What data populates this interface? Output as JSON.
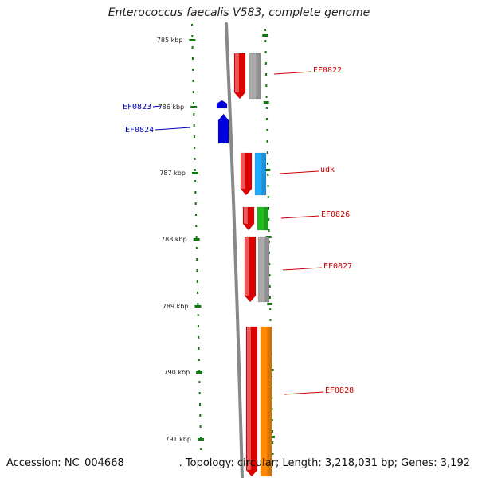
{
  "title": "Enterococcus faecalis V583, complete genome",
  "footer": {
    "accession": "Accession: NC_004668",
    "info": ". Topology: circular; Length: 3,218,031 bp; Genes: 3,192"
  },
  "colors": {
    "backbone": "#888888",
    "ticks": "#117711",
    "label_right": "#cc0000",
    "label_left": "#0000bb"
  },
  "scale": {
    "unit": "kbp",
    "ticks": [
      {
        "label": "785 kbp"
      },
      {
        "label": "786 kbp"
      },
      {
        "label": "787 kbp"
      },
      {
        "label": "788 kbp"
      },
      {
        "label": "789 kbp"
      },
      {
        "label": "790 kbp"
      },
      {
        "label": "791 kbp"
      }
    ]
  },
  "genes": [
    {
      "name": "EF0822",
      "strand": "right",
      "label_color": "#cc0000",
      "col1": "#dd0000",
      "col2": "#aaaaaa"
    },
    {
      "name": "EF0823",
      "strand": "left",
      "label_color": "#0000bb",
      "col1": "#0000dd"
    },
    {
      "name": "EF0824",
      "strand": "left",
      "label_color": "#0000bb",
      "col1": "#0000dd"
    },
    {
      "name": "udk",
      "strand": "right",
      "label_color": "#cc0000",
      "col1": "#dd0000",
      "col2": "#22aaff"
    },
    {
      "name": "EF0826",
      "strand": "right",
      "label_color": "#cc0000",
      "col1": "#dd0000",
      "col2": "#22bb22"
    },
    {
      "name": "EF0827",
      "strand": "right",
      "label_color": "#cc0000",
      "col1": "#dd0000",
      "col2": "#aaaaaa"
    },
    {
      "name": "EF0828",
      "strand": "right",
      "label_color": "#cc0000",
      "col1": "#dd0000",
      "col2": "#ff8800"
    }
  ]
}
